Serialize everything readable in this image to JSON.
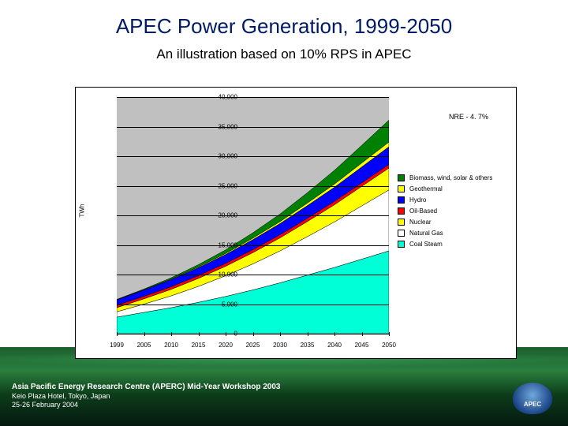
{
  "title": "APEC Power Generation, 1999-2050",
  "subtitle": "An illustration based on 10% RPS in APEC",
  "annotation": "NRE - 4. 7%",
  "y_axis_label": "TWh",
  "footer": {
    "line1": "Asia Pacific Energy Research Centre (APERC) Mid-Year Workshop 2003",
    "line2": "Keio Plaza Hotel, Tokyo, Japan",
    "line3": "25-26 February 2004"
  },
  "apec_logo_text": "APEC",
  "chart": {
    "type": "stacked-area",
    "background_color": "#ffffff",
    "grid_color": "#000000",
    "plot_bg": "#c0c0c0",
    "x_categories": [
      "1999",
      "2005",
      "2010",
      "2015",
      "2020",
      "2025",
      "2030",
      "2035",
      "2040",
      "2045",
      "2050"
    ],
    "ylim": [
      0,
      40000
    ],
    "ytick_step": 5000,
    "y_ticks": [
      "0",
      "5,000",
      "10,000",
      "15,000",
      "20,000",
      "25,000",
      "30,000",
      "35,000",
      "40,000"
    ],
    "label_fontsize": 8,
    "series": [
      {
        "name": "Coal Steam",
        "color": "#00ffd6",
        "values": [
          2800,
          3600,
          4400,
          5300,
          6300,
          7400,
          8600,
          9900,
          11200,
          12600,
          14000
        ]
      },
      {
        "name": "Natural Gas",
        "color": "#ffffff",
        "values": [
          900,
          1400,
          2000,
          2700,
          3500,
          4400,
          5400,
          6500,
          7700,
          9000,
          10300
        ]
      },
      {
        "name": "Nuclear",
        "color": "#ffff00",
        "values": [
          700,
          900,
          1100,
          1350,
          1600,
          1900,
          2200,
          2550,
          2900,
          3300,
          3700
        ]
      },
      {
        "name": "Oil-Based",
        "color": "#ff0000",
        "values": [
          400,
          420,
          440,
          460,
          480,
          500,
          520,
          540,
          560,
          580,
          600
        ]
      },
      {
        "name": "Hydro",
        "color": "#0000ff",
        "values": [
          900,
          1050,
          1200,
          1350,
          1500,
          1700,
          1900,
          2150,
          2400,
          2700,
          3000
        ]
      },
      {
        "name": "Geothermal",
        "color": "#ffff00",
        "values": [
          40,
          60,
          90,
          130,
          180,
          250,
          330,
          430,
          540,
          670,
          800
        ]
      },
      {
        "name": "Biomass, wind, solar & others",
        "color": "#008000",
        "values": [
          60,
          120,
          220,
          380,
          600,
          900,
          1280,
          1750,
          2320,
          2980,
          3700
        ]
      }
    ],
    "legend_order": [
      "Biomass, wind, solar & others",
      "Geothermal",
      "Hydro",
      "Oil-Based",
      "Nuclear",
      "Natural Gas",
      "Coal Steam"
    ]
  },
  "colors": {
    "title": "#001a66",
    "earth_top": "#1a5f2e",
    "earth_bottom": "#041810"
  }
}
